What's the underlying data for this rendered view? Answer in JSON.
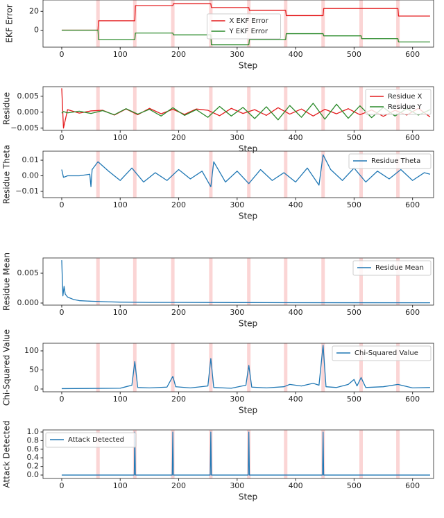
{
  "chart_data": [
    {
      "type": "line",
      "ylabel": "EKF Error",
      "xlabel": "Step",
      "legend": "center",
      "xlim": [
        -32,
        636
      ],
      "xticks": [
        0,
        100,
        200,
        300,
        400,
        500,
        600
      ],
      "ylim": [
        -18,
        32
      ],
      "yticks": [
        0,
        20
      ],
      "highlights": [
        62,
        125,
        190,
        255,
        320,
        383,
        447,
        512,
        575
      ],
      "highlight_color": "#fbd5d5",
      "x": [
        0,
        62,
        63,
        125,
        126,
        190,
        191,
        255,
        256,
        320,
        321,
        383,
        384,
        447,
        448,
        512,
        513,
        575,
        576,
        630
      ],
      "series": [
        {
          "name": "X EKF Error",
          "color": "#e41a1c",
          "values": [
            0,
            0,
            10,
            10,
            26,
            26,
            28,
            28,
            24,
            24,
            21,
            21,
            15.5,
            15.5,
            23,
            23,
            23,
            23,
            15,
            15
          ]
        },
        {
          "name": "Y EKF Error",
          "color": "#2a8a2a",
          "values": [
            0,
            0,
            -10,
            -10,
            -3,
            -3,
            -5,
            -5,
            -15.5,
            -15.5,
            -10,
            -10,
            -3.7,
            -3.7,
            -6,
            -6,
            -9,
            -9,
            -12.5,
            -12.5
          ]
        }
      ]
    },
    {
      "type": "line",
      "ylabel": "Residue",
      "xlabel": "Step",
      "legend": "upper right",
      "xlim": [
        -32,
        636
      ],
      "xticks": [
        0,
        100,
        200,
        300,
        400,
        500,
        600
      ],
      "ylim": [
        -0.0057,
        0.008
      ],
      "yticks": [
        {
          "value": -0.005,
          "label": "−0.005"
        },
        {
          "value": 0,
          "label": "0.000"
        },
        {
          "value": 0.005,
          "label": "0.005"
        }
      ],
      "highlights": [
        62,
        125,
        190,
        255,
        320,
        383,
        447,
        512,
        575
      ],
      "highlight_color": "#fbd5d5",
      "x": [
        0,
        3,
        10,
        30,
        50,
        70,
        90,
        110,
        130,
        150,
        170,
        190,
        210,
        230,
        250,
        270,
        290,
        310,
        330,
        350,
        370,
        390,
        410,
        430,
        450,
        470,
        490,
        510,
        530,
        550,
        570,
        590,
        610,
        630
      ],
      "series": [
        {
          "name": "Residue X",
          "color": "#e41a1c",
          "values": [
            0.0075,
            -0.005,
            0.0008,
            -0.0003,
            0.0004,
            0.0006,
            -0.0009,
            0.001,
            -0.0008,
            0.0012,
            -0.0005,
            0.0009,
            -0.0007,
            0.001,
            0.0006,
            -0.0011,
            0.0012,
            -0.0004,
            0.0008,
            -0.001,
            0.0014,
            -0.0006,
            0.001,
            -0.0012,
            0.0009,
            -0.0005,
            0.0011,
            -0.0008,
            0.0007,
            -0.0013,
            0.0006,
            -0.0009,
            0.0012,
            -0.0015
          ]
        },
        {
          "name": "Residue Y",
          "color": "#2a8a2a",
          "values": [
            -0.0003,
            0.0002,
            -0.0002,
            0.0003,
            -0.0004,
            0.0005,
            -0.0008,
            0.0011,
            -0.0006,
            0.0009,
            -0.0012,
            0.0014,
            -0.001,
            0.0008,
            -0.0016,
            0.0018,
            -0.0012,
            0.0015,
            -0.002,
            0.0017,
            -0.0024,
            0.0021,
            -0.0016,
            0.0028,
            -0.0022,
            0.0025,
            -0.0019,
            0.002,
            -0.0017,
            0.0015,
            -0.0012,
            0.0011,
            -0.0009,
            0.0008
          ]
        }
      ]
    },
    {
      "type": "line",
      "ylabel": "Residue Theta",
      "xlabel": "Step",
      "legend": "upper right",
      "xlim": [
        -32,
        636
      ],
      "xticks": [
        0,
        100,
        200,
        300,
        400,
        500,
        600
      ],
      "ylim": [
        -0.014,
        0.0158
      ],
      "yticks": [
        {
          "value": -0.01,
          "label": "−0.01"
        },
        {
          "value": 0,
          "label": "0.00"
        },
        0.01
      ],
      "highlights": [
        62,
        125,
        190,
        255,
        320,
        383,
        447,
        512,
        575
      ],
      "highlight_color": "#fbd5d5",
      "x": [
        0,
        3,
        10,
        30,
        48,
        50,
        52,
        62,
        80,
        100,
        120,
        140,
        160,
        180,
        200,
        220,
        240,
        255,
        260,
        280,
        300,
        320,
        340,
        360,
        380,
        400,
        420,
        440,
        447,
        460,
        480,
        500,
        520,
        540,
        560,
        580,
        600,
        620,
        630
      ],
      "series": [
        {
          "name": "Residue Theta",
          "color": "#1f77b4",
          "values": [
            0.004,
            -0.001,
            0,
            0,
            0.001,
            -0.007,
            0.004,
            0.009,
            0.003,
            -0.003,
            0.005,
            -0.004,
            0.002,
            -0.003,
            0.004,
            -0.002,
            0.003,
            -0.007,
            0.009,
            -0.004,
            0.003,
            -0.005,
            0.004,
            -0.003,
            0.002,
            -0.004,
            0.005,
            -0.006,
            0.0135,
            0.004,
            -0.003,
            0.005,
            -0.004,
            0.003,
            -0.002,
            0.004,
            -0.003,
            0.002,
            0.001
          ]
        }
      ]
    },
    {
      "type": "line",
      "ylabel": "Residue Mean",
      "xlabel": "Step",
      "legend": "upper right",
      "xlim": [
        -32,
        636
      ],
      "xticks": [
        0,
        100,
        200,
        300,
        400,
        500,
        600
      ],
      "ylim": [
        -0.00035,
        0.00756
      ],
      "yticks": [
        {
          "value": 0,
          "label": "0.000"
        },
        0.005
      ],
      "highlights": [
        62,
        125,
        190,
        255,
        320,
        383,
        447,
        512,
        575
      ],
      "highlight_color": "#fbd5d5",
      "x": [
        0,
        2,
        4,
        6,
        10,
        20,
        30,
        50,
        80,
        100,
        150,
        200,
        300,
        400,
        500,
        630
      ],
      "series": [
        {
          "name": "Residue Mean",
          "color": "#1f77b4",
          "values": [
            0.0072,
            0.0012,
            0.0028,
            0.0015,
            0.001,
            0.0006,
            0.0004,
            0.0003,
            0.0002,
            0.00015,
            0.0001,
            0.0001,
            8e-05,
            6e-05,
            5e-05,
            4e-05
          ]
        }
      ]
    },
    {
      "type": "line",
      "ylabel": "Chi-Squared Value",
      "xlabel": "Step",
      "legend": "upper right",
      "xlim": [
        -32,
        636
      ],
      "xticks": [
        0,
        100,
        200,
        300,
        400,
        500,
        600
      ],
      "ylim": [
        -7.3,
        120
      ],
      "yticks": [
        0,
        50,
        100
      ],
      "highlights": [
        62,
        125,
        190,
        255,
        320,
        383,
        447,
        512,
        575
      ],
      "highlight_color": "#fbd5d5",
      "x": [
        0,
        100,
        110,
        120,
        125,
        130,
        150,
        180,
        190,
        195,
        220,
        250,
        255,
        260,
        290,
        315,
        320,
        325,
        350,
        380,
        390,
        410,
        430,
        440,
        447,
        452,
        470,
        490,
        500,
        505,
        512,
        520,
        550,
        575,
        600,
        630
      ],
      "series": [
        {
          "name": "Chi-Squared Value",
          "color": "#1f77b4",
          "values": [
            1,
            2,
            6,
            10,
            72,
            4,
            3,
            5,
            33,
            6,
            3,
            8,
            80,
            4,
            2,
            10,
            62,
            5,
            3,
            6,
            12,
            8,
            15,
            10,
            115,
            6,
            4,
            12,
            25,
            8,
            30,
            4,
            6,
            12,
            3,
            4
          ]
        }
      ]
    },
    {
      "type": "line",
      "ylabel": "Attack Detected",
      "xlabel": "Step",
      "legend": "upper left",
      "xlim": [
        -32,
        636
      ],
      "xticks": [
        0,
        100,
        200,
        300,
        400,
        500,
        600
      ],
      "ylim": [
        -0.08,
        1.048
      ],
      "yticks": [
        {
          "value": 0,
          "label": "0.0"
        },
        0.2,
        0.4,
        0.6,
        0.8,
        {
          "value": 1,
          "label": "1.0"
        }
      ],
      "highlights": [
        62,
        125,
        190,
        255,
        320,
        383,
        447,
        512,
        575
      ],
      "highlight_color": "#fbd5d5",
      "x": [
        0,
        124,
        125,
        126,
        189,
        190,
        191,
        254,
        255,
        256,
        319,
        320,
        321,
        446,
        447,
        448,
        630
      ],
      "series": [
        {
          "name": "Attack Detected",
          "color": "#1f77b4",
          "values": [
            0,
            0,
            1,
            0,
            0,
            1,
            0,
            0,
            1,
            0,
            0,
            1,
            0,
            0,
            1,
            0,
            0
          ]
        }
      ]
    }
  ]
}
